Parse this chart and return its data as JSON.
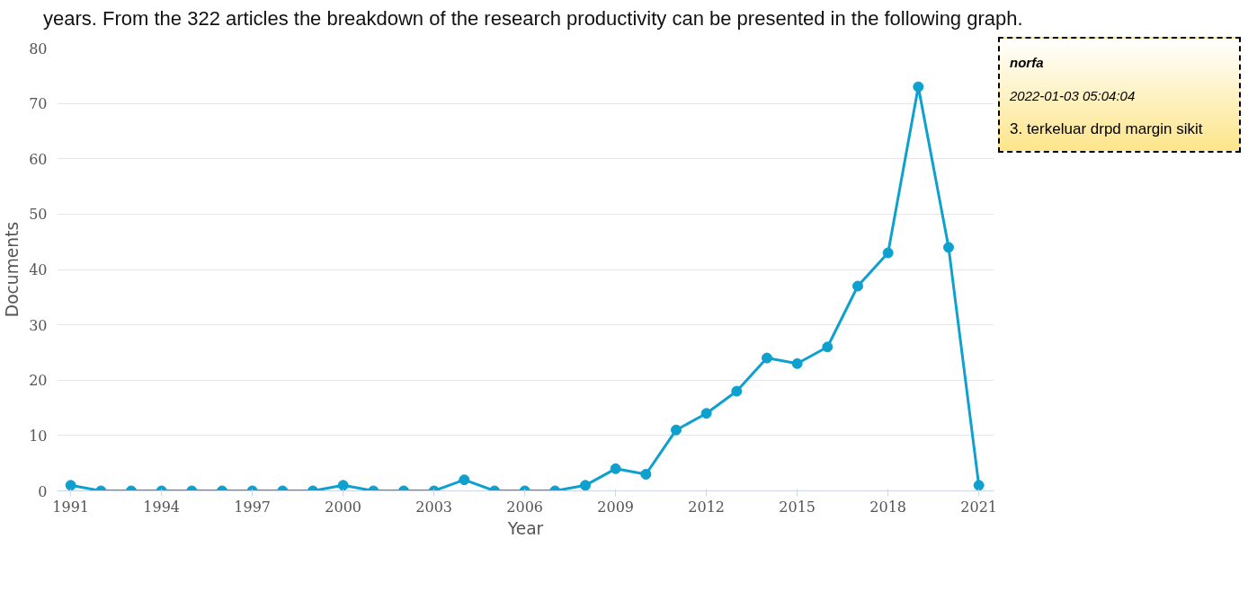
{
  "chart_data": {
    "type": "line",
    "x": [
      1991,
      1992,
      1993,
      1994,
      1995,
      1996,
      1997,
      1998,
      1999,
      2000,
      2001,
      2002,
      2003,
      2004,
      2005,
      2006,
      2007,
      2008,
      2009,
      2010,
      2011,
      2012,
      2013,
      2014,
      2015,
      2016,
      2017,
      2018,
      2019,
      2020,
      2021
    ],
    "series": [
      {
        "color": "#0ea0cf",
        "values": [
          1,
          0,
          0,
          0,
          0,
          0,
          0,
          0,
          0,
          1,
          0,
          0,
          0,
          2,
          0,
          0,
          0,
          1,
          4,
          3,
          11,
          14,
          18,
          24,
          23,
          26,
          37,
          43,
          73,
          44,
          1
        ]
      }
    ],
    "xlim": [
      1990.55,
      2021.5
    ],
    "xticks": [
      1991,
      1994,
      1997,
      2000,
      2003,
      2006,
      2009,
      2012,
      2015,
      2018,
      2021
    ],
    "ylim": [
      0,
      80
    ],
    "yticks": [
      0,
      10,
      20,
      30,
      40,
      50,
      60,
      70,
      80
    ],
    "xlabel": "Year",
    "ylabel": "Documents",
    "grid": "y",
    "marker": "circle",
    "line_style": "solid",
    "annotations": [
      "years. From the 322 articles the breakdown of the research productivity can be presented in the following graph.",
      "norfa",
      "2022-01-03 05:04:04",
      "3. terkeluar drpd margin sikit"
    ]
  }
}
